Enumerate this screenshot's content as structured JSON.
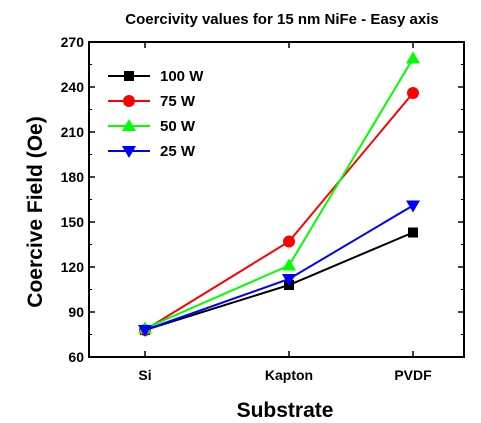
{
  "chart_data": {
    "type": "line",
    "title": "Coercivity values for 15 nm NiFe - Easy axis",
    "xlabel": "Substrate",
    "ylabel": "Coercive Field (Oe)",
    "categories": [
      "Si",
      "Kapton",
      "PVDF"
    ],
    "ylim": [
      60,
      270
    ],
    "yticks": [
      60,
      90,
      120,
      150,
      180,
      210,
      240,
      270
    ],
    "grid": false,
    "legend_position": "top-left",
    "series": [
      {
        "name": "100 W",
        "values": [
          78,
          108,
          143
        ],
        "color": "#000000",
        "marker": "square"
      },
      {
        "name": "75 W",
        "values": [
          78,
          137,
          236
        ],
        "color": "#ff0000",
        "marker": "circle"
      },
      {
        "name": "50 W",
        "values": [
          79,
          121,
          259
        ],
        "color": "#00ff00",
        "marker": "triangle-up"
      },
      {
        "name": "25 W",
        "values": [
          78,
          112,
          161
        ],
        "color": "#0000ff",
        "marker": "triangle-down"
      }
    ]
  }
}
